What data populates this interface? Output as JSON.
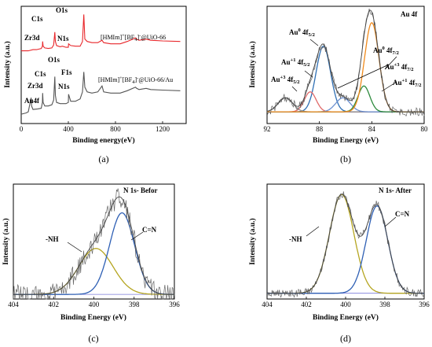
{
  "chart_data": [
    {
      "panel": "(a)",
      "type": "line",
      "xlabel": "Binding energy(eV)",
      "ylabel": "Intensity (a.u.)",
      "xlim": [
        0,
        1400
      ],
      "xticks": [
        "0",
        "400",
        "800",
        "1200"
      ],
      "series": [
        {
          "name": "[HMIm]+[BF4]-@UiO-66",
          "color": "#e8262a",
          "x": [
            0,
            60,
            100,
            130,
            150,
            170,
            180,
            182,
            186,
            200,
            230,
            260,
            275,
            285,
            290,
            300,
            330,
            350,
            380,
            400,
            402,
            420,
            460,
            500,
            520,
            531,
            540,
            560,
            600,
            650,
            686,
            700,
            760,
            840,
            900,
            970,
            980,
            1000,
            1060,
            1100,
            1200,
            1350
          ],
          "y": [
            0.62,
            0.62,
            0.63,
            0.63,
            0.635,
            0.64,
            0.66,
            0.7,
            0.66,
            0.645,
            0.64,
            0.645,
            0.67,
            0.78,
            0.7,
            0.665,
            0.655,
            0.66,
            0.65,
            0.65,
            0.68,
            0.665,
            0.66,
            0.66,
            0.7,
            0.93,
            0.72,
            0.7,
            0.69,
            0.69,
            0.71,
            0.69,
            0.68,
            0.68,
            0.7,
            0.73,
            0.72,
            0.71,
            0.72,
            0.71,
            0.705,
            0.7
          ]
        },
        {
          "name": "[HMIm]+[BF4]-@UiO-66/Au",
          "color": "#555555",
          "x": [
            0,
            40,
            60,
            84,
            88,
            100,
            140,
            170,
            180,
            182,
            186,
            200,
            230,
            260,
            275,
            285,
            290,
            300,
            330,
            380,
            400,
            402,
            420,
            460,
            500,
            520,
            531,
            540,
            560,
            600,
            650,
            686,
            700,
            760,
            840,
            900,
            970,
            980,
            1000,
            1060,
            1100,
            1200,
            1350
          ],
          "y": [
            0.08,
            0.09,
            0.1,
            0.22,
            0.15,
            0.12,
            0.125,
            0.13,
            0.18,
            0.26,
            0.18,
            0.15,
            0.15,
            0.16,
            0.2,
            0.4,
            0.24,
            0.18,
            0.17,
            0.17,
            0.18,
            0.25,
            0.19,
            0.19,
            0.21,
            0.27,
            0.44,
            0.31,
            0.27,
            0.26,
            0.27,
            0.32,
            0.27,
            0.26,
            0.26,
            0.28,
            0.31,
            0.3,
            0.29,
            0.3,
            0.29,
            0.285,
            0.28
          ]
        }
      ],
      "annotations": [
        "O1s",
        "C1s",
        "Zr3d",
        "N1s",
        "[HMIm]+[BF4]-@UiO-66",
        "O1s",
        "F1s",
        "Zr3d",
        "C1s",
        "N1s",
        "Au4f",
        "[HMIm]+[BF4]-@UiO-66/Au"
      ]
    },
    {
      "panel": "(b)",
      "type": "line",
      "title": "Au 4f",
      "xlabel": "Binding Energy (eV)",
      "ylabel": "Intensity (a.u.)",
      "xlim": [
        92,
        80
      ],
      "xticks": [
        "92",
        "88",
        "84",
        "80"
      ],
      "baseline": 0.1,
      "peaks": [
        {
          "label": "Au0 4f5/2",
          "center": 87.7,
          "height": 0.56,
          "width": 0.55,
          "color": "#2e6fb4"
        },
        {
          "label": "Au+1 4f5/2",
          "center": 88.7,
          "height": 0.17,
          "width": 0.45,
          "color": "#e06a6a"
        },
        {
          "label": "Au+3 4f5/2",
          "center": 90.6,
          "height": 0.12,
          "width": 0.55,
          "color": "#888888"
        },
        {
          "label": "Au+3 4f7/2",
          "center": 86.2,
          "height": 0.12,
          "width": 0.55,
          "color": "#6a8fd0"
        },
        {
          "label": "Au+1 4f7/2",
          "center": 84.6,
          "height": 0.22,
          "width": 0.45,
          "color": "#2c8a3c"
        },
        {
          "label": "Au0 4f7/2",
          "center": 84.0,
          "height": 0.76,
          "width": 0.55,
          "color": "#f08a1c"
        }
      ],
      "labels": [
        "Au 4f",
        "Au0 4f5/2",
        "Au0 4f7/2",
        "Au+3 4f7/2",
        "Au+1 4f5/2",
        "Au+3 4f5/2",
        "Au+1 4f7/2"
      ]
    },
    {
      "panel": "(c)",
      "type": "line",
      "title": "N 1s- Befor",
      "xlabel": "Binding Energy (eV)",
      "ylabel": "Intensity (a.u.)",
      "xlim": [
        404,
        396
      ],
      "xticks": [
        "404",
        "402",
        "400",
        "398",
        "396"
      ],
      "baseline": 0.04,
      "peaks": [
        {
          "label": "-NH",
          "center": 399.9,
          "height": 0.4,
          "width": 0.85,
          "color": "#b5a520"
        },
        {
          "label": "C=N",
          "center": 398.6,
          "height": 0.71,
          "width": 0.62,
          "color": "#2e5fb4"
        }
      ],
      "labels": [
        "N 1s- Befor",
        "-NH",
        "C=N"
      ]
    },
    {
      "panel": "(d)",
      "type": "line",
      "title": "N 1s- After",
      "xlabel": "Binding Energy (eV)",
      "ylabel": "Intensity (a.u.)",
      "xlim": [
        404,
        396
      ],
      "xticks": [
        "404",
        "402",
        "400",
        "398",
        "396"
      ],
      "baseline": 0.05,
      "peaks": [
        {
          "label": "-NH",
          "center": 400.2,
          "height": 0.86,
          "width": 0.62,
          "color": "#b5a520"
        },
        {
          "label": "C=N",
          "center": 398.4,
          "height": 0.76,
          "width": 0.55,
          "color": "#2e5fb4"
        }
      ],
      "labels": [
        "N 1s- After",
        "-NH",
        "C=N"
      ]
    }
  ],
  "panel_labels": [
    "(a)",
    "(b)",
    "(c)",
    "(d)"
  ]
}
